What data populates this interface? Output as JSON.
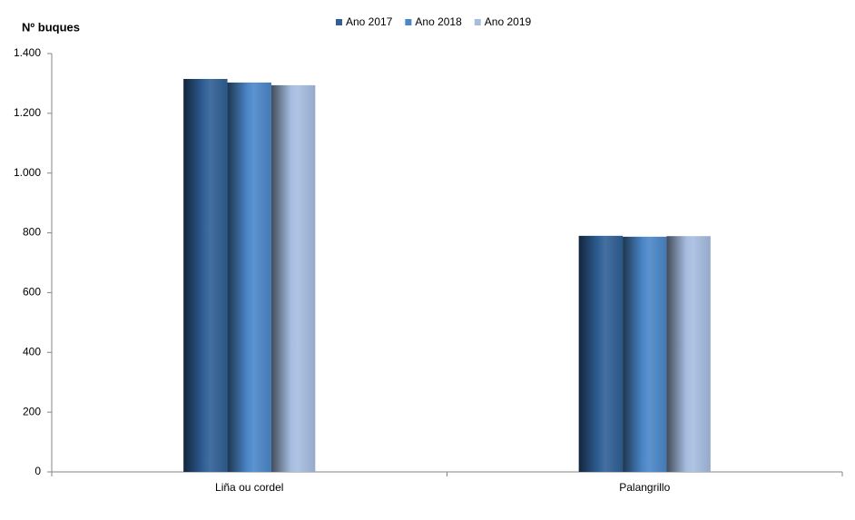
{
  "chart_data": {
    "type": "bar",
    "y_label": "Nº  buques",
    "categories": [
      "Liña ou cordel",
      "Palangrillo"
    ],
    "series": [
      {
        "name": "Ano 2017",
        "color": "#2f5f95",
        "values": [
          1315,
          790
        ]
      },
      {
        "name": "Ano 2018",
        "color": "#4a86c8",
        "values": [
          1303,
          787
        ]
      },
      {
        "name": "Ano 2019",
        "color": "#a6bde0",
        "values": [
          1294,
          789
        ]
      }
    ],
    "ylim": [
      0,
      1400
    ],
    "yticks": [
      0,
      200,
      400,
      600,
      800,
      {
        "value": 1000,
        "label": "1.000"
      },
      {
        "value": 1200,
        "label": "1.200"
      },
      {
        "value": 1400,
        "label": "1.400"
      }
    ],
    "grid": false,
    "legend": "top"
  }
}
